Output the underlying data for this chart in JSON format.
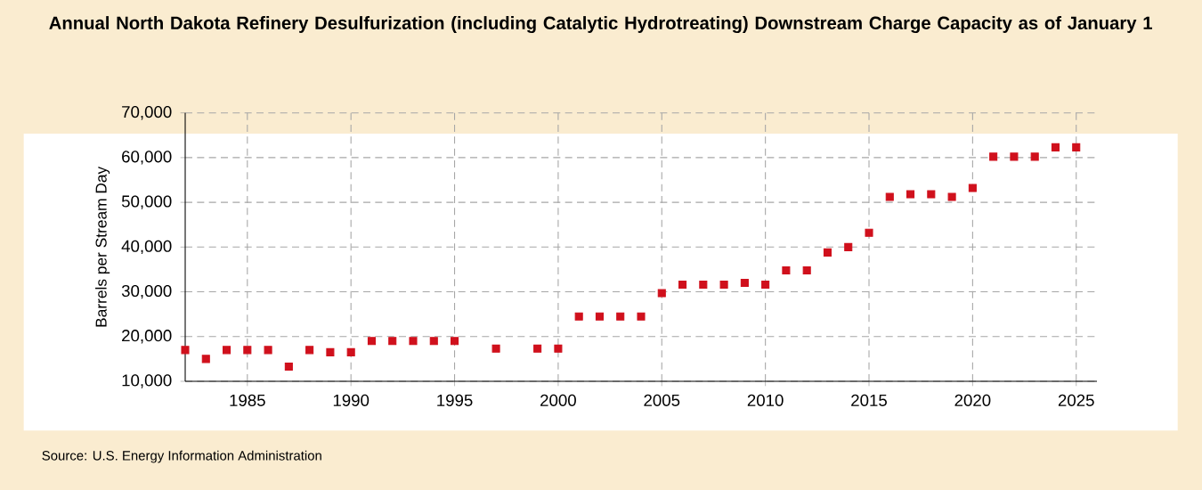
{
  "chart_data": {
    "type": "scatter",
    "title": "Annual North Dakota Refinery Desulfurization (including Catalytic Hydrotreating) Downstream Charge Capacity as of January 1",
    "ylabel": "Barrels per Stream Day",
    "annotations": [
      "Source: U.S. Energy Information Administration"
    ],
    "x": [
      1982,
      1983,
      1984,
      1985,
      1986,
      1987,
      1988,
      1989,
      1990,
      1991,
      1992,
      1993,
      1994,
      1995,
      1997,
      1999,
      2000,
      2001,
      2002,
      2003,
      2004,
      2005,
      2006,
      2007,
      2008,
      2009,
      2010,
      2011,
      2012,
      2013,
      2014,
      2015,
      2016,
      2017,
      2018,
      2019,
      2020,
      2021,
      2022,
      2023,
      2024,
      2025
    ],
    "values": [
      17000,
      15000,
      17000,
      17000,
      17000,
      13300,
      17000,
      16500,
      16500,
      19000,
      19000,
      19000,
      19000,
      19000,
      17300,
      17300,
      17300,
      24500,
      24500,
      24500,
      24500,
      29700,
      31600,
      31600,
      31600,
      32000,
      31600,
      34800,
      34800,
      38800,
      40000,
      43200,
      51200,
      51800,
      51800,
      51200,
      53200,
      60200,
      60200,
      60200,
      62300,
      62300
    ],
    "color": "#d0101c",
    "marker": "square",
    "grid": true,
    "xlim": [
      1982,
      2026
    ],
    "ylim": [
      10000,
      70000
    ],
    "xticks": [
      1985,
      1990,
      1995,
      2000,
      2005,
      2010,
      2015,
      2020,
      2025
    ],
    "yticks": [
      {
        "value": 10000,
        "label": "10,000"
      },
      {
        "value": 20000,
        "label": "20,000"
      },
      {
        "value": 30000,
        "label": "30,000"
      },
      {
        "value": 40000,
        "label": "40,000"
      },
      {
        "value": 50000,
        "label": "50,000"
      },
      {
        "value": 60000,
        "label": "60,000"
      },
      {
        "value": 70000,
        "label": "70,000"
      }
    ]
  }
}
